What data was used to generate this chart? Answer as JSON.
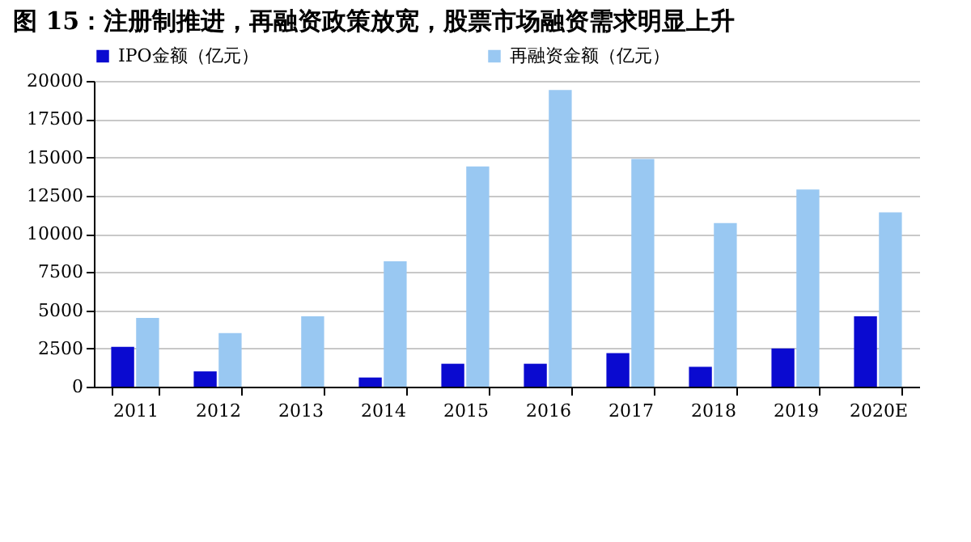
{
  "chart_data": {
    "type": "bar",
    "title": "图 15：注册制推进，再融资政策放宽，股票市场融资需求明显上升",
    "categories": [
      "2011",
      "2012",
      "2013",
      "2014",
      "2015",
      "2016",
      "2017",
      "2018",
      "2019",
      "2020E"
    ],
    "series": [
      {
        "name": "IPO金额（亿元）",
        "color": "#0a0ad0",
        "values": [
          2600,
          1000,
          0,
          600,
          1500,
          1500,
          2200,
          1300,
          2500,
          4600
        ]
      },
      {
        "name": "再融资金额（亿元）",
        "color": "#99c8f2",
        "values": [
          4500,
          3500,
          4600,
          8200,
          14400,
          19400,
          14900,
          10700,
          12900,
          11400
        ]
      }
    ],
    "ylim": [
      0,
      20000
    ],
    "yticks": [
      0,
      2500,
      5000,
      7500,
      10000,
      12500,
      15000,
      17500,
      20000
    ],
    "grid": "y",
    "legend": "top"
  }
}
